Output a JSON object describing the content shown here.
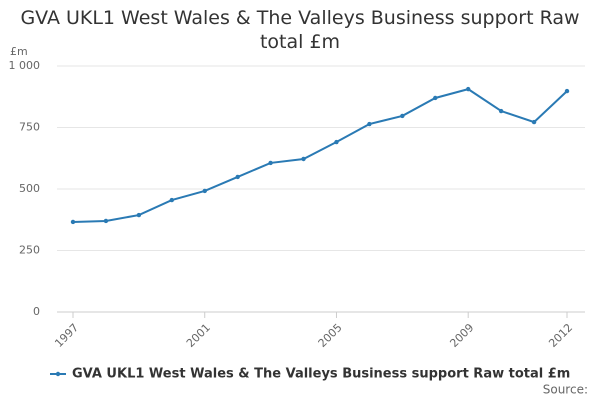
{
  "chart_data": {
    "type": "line",
    "title": "GVA UKL1 West Wales & The Valleys Business support Raw total £m",
    "y_label": "£m",
    "x": [
      1997,
      1998,
      1999,
      2000,
      2001,
      2002,
      2003,
      2004,
      2005,
      2006,
      2007,
      2008,
      2009,
      2010,
      2011,
      2012
    ],
    "series": [
      {
        "name": "GVA UKL1 West Wales & The Valleys Business support Raw total £m",
        "color": "#2a7ab4",
        "values": [
          366,
          370,
          394,
          455,
          492,
          549,
          606,
          622,
          691,
          764,
          797,
          870,
          906,
          817,
          772,
          898
        ]
      }
    ],
    "xlim": [
      1997,
      2012
    ],
    "xticks": [
      1997,
      2001,
      2005,
      2009,
      2012
    ],
    "ylim": [
      0,
      1000
    ],
    "yticks": [
      0,
      250,
      500,
      750,
      {
        "value": 1000,
        "label": "1 000"
      }
    ],
    "grid": true,
    "legend": "bottom",
    "source": "Source:"
  }
}
